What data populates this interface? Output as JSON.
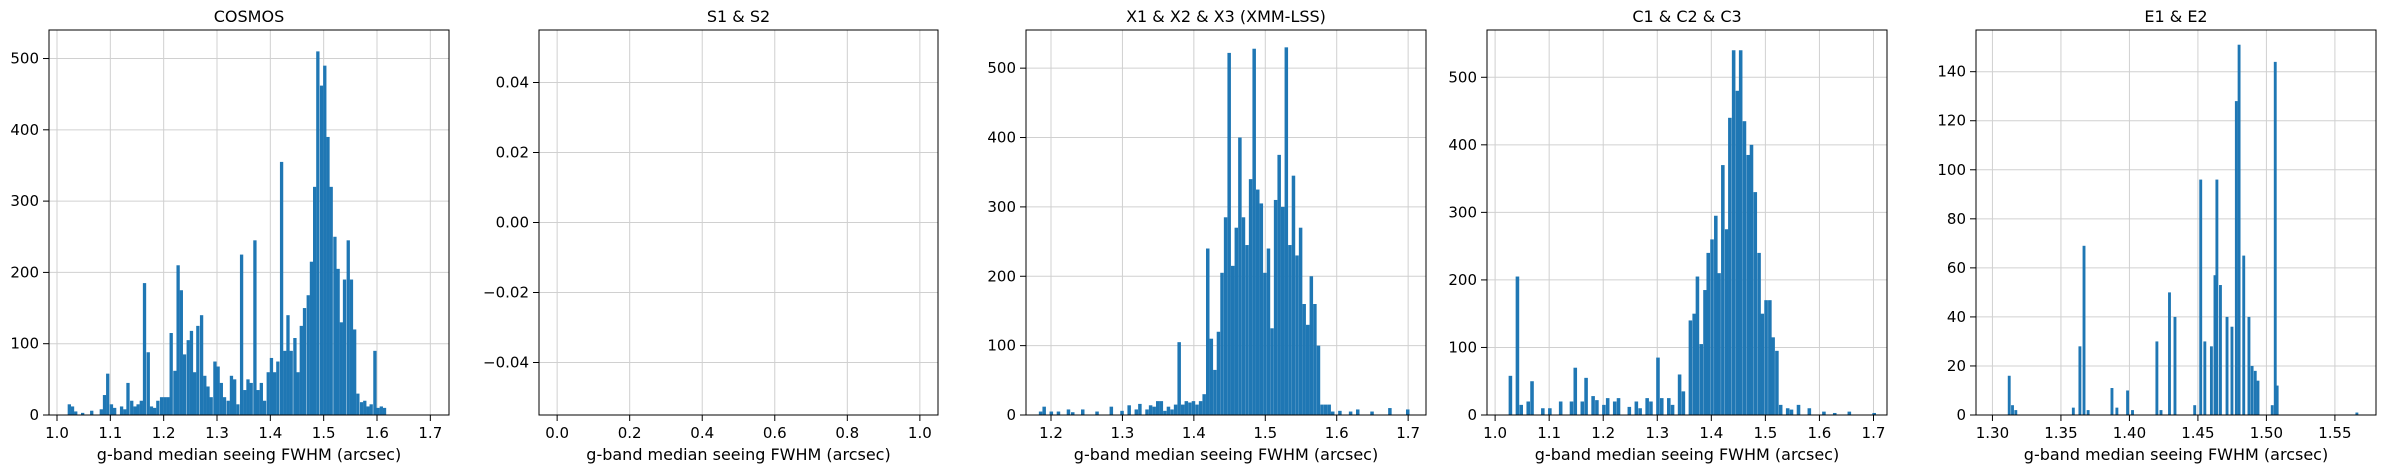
{
  "chart_data": [
    {
      "type": "bar",
      "title": "COSMOS",
      "xlabel": "g-band median seeing FWHM (arcsec)",
      "ylabel": "",
      "xlim": [
        0.985,
        1.735
      ],
      "ylim": [
        0,
        540
      ],
      "xticks": [
        1.0,
        1.1,
        1.2,
        1.3,
        1.4,
        1.5,
        1.6,
        1.7
      ],
      "xtick_labels": [
        "1.0",
        "1.1",
        "1.2",
        "1.3",
        "1.4",
        "1.5",
        "1.6",
        "1.7"
      ],
      "yticks": [
        0,
        100,
        200,
        300,
        400,
        500
      ],
      "ytick_labels": [
        "0",
        "100",
        "200",
        "300",
        "400",
        "500"
      ],
      "grid": true,
      "color": "#1f77b4",
      "bin_width": 0.0062,
      "bins": [
        [
          1.02,
          15
        ],
        [
          1.026,
          12
        ],
        [
          1.032,
          5
        ],
        [
          1.045,
          3
        ],
        [
          1.062,
          6
        ],
        [
          1.08,
          8
        ],
        [
          1.086,
          28
        ],
        [
          1.092,
          58
        ],
        [
          1.099,
          15
        ],
        [
          1.105,
          10
        ],
        [
          1.118,
          12
        ],
        [
          1.124,
          8
        ],
        [
          1.13,
          45
        ],
        [
          1.137,
          20
        ],
        [
          1.143,
          12
        ],
        [
          1.149,
          15
        ],
        [
          1.155,
          20
        ],
        [
          1.161,
          185
        ],
        [
          1.168,
          88
        ],
        [
          1.174,
          12
        ],
        [
          1.18,
          10
        ],
        [
          1.186,
          20
        ],
        [
          1.193,
          25
        ],
        [
          1.199,
          25
        ],
        [
          1.205,
          25
        ],
        [
          1.211,
          115
        ],
        [
          1.218,
          62
        ],
        [
          1.224,
          210
        ],
        [
          1.23,
          175
        ],
        [
          1.236,
          85
        ],
        [
          1.243,
          105
        ],
        [
          1.249,
          118
        ],
        [
          1.255,
          60
        ],
        [
          1.261,
          125
        ],
        [
          1.268,
          140
        ],
        [
          1.274,
          55
        ],
        [
          1.28,
          40
        ],
        [
          1.286,
          25
        ],
        [
          1.293,
          75
        ],
        [
          1.299,
          68
        ],
        [
          1.305,
          45
        ],
        [
          1.311,
          25
        ],
        [
          1.318,
          20
        ],
        [
          1.324,
          55
        ],
        [
          1.33,
          50
        ],
        [
          1.336,
          15
        ],
        [
          1.343,
          225
        ],
        [
          1.349,
          35
        ],
        [
          1.355,
          50
        ],
        [
          1.361,
          45
        ],
        [
          1.368,
          245
        ],
        [
          1.374,
          35
        ],
        [
          1.38,
          45
        ],
        [
          1.386,
          20
        ],
        [
          1.393,
          60
        ],
        [
          1.399,
          80
        ],
        [
          1.405,
          60
        ],
        [
          1.411,
          75
        ],
        [
          1.418,
          355
        ],
        [
          1.424,
          90
        ],
        [
          1.43,
          140
        ],
        [
          1.436,
          90
        ],
        [
          1.443,
          108
        ],
        [
          1.449,
          60
        ],
        [
          1.455,
          125
        ],
        [
          1.461,
          150
        ],
        [
          1.468,
          168
        ],
        [
          1.474,
          215
        ],
        [
          1.48,
          320
        ],
        [
          1.486,
          510
        ],
        [
          1.493,
          462
        ],
        [
          1.499,
          490
        ],
        [
          1.505,
          390
        ],
        [
          1.511,
          320
        ],
        [
          1.518,
          250
        ],
        [
          1.524,
          205
        ],
        [
          1.53,
          130
        ],
        [
          1.536,
          190
        ],
        [
          1.543,
          245
        ],
        [
          1.549,
          190
        ],
        [
          1.555,
          120
        ],
        [
          1.561,
          30
        ],
        [
          1.568,
          18
        ],
        [
          1.574,
          20
        ],
        [
          1.58,
          12
        ],
        [
          1.586,
          15
        ],
        [
          1.593,
          90
        ],
        [
          1.599,
          10
        ],
        [
          1.605,
          12
        ],
        [
          1.611,
          10
        ]
      ]
    },
    {
      "type": "bar",
      "title": "S1 & S2",
      "xlabel": "g-band median seeing FWHM (arcsec)",
      "ylabel": "",
      "xlim": [
        -0.05,
        1.05
      ],
      "ylim": [
        -0.055,
        0.055
      ],
      "xticks": [
        0.0,
        0.2,
        0.4,
        0.6,
        0.8,
        1.0
      ],
      "xtick_labels": [
        "0.0",
        "0.2",
        "0.4",
        "0.6",
        "0.8",
        "1.0"
      ],
      "yticks": [
        -0.04,
        -0.02,
        0.0,
        0.02,
        0.04
      ],
      "ytick_labels": [
        "−0.04",
        "−0.02",
        "0.00",
        "0.02",
        "0.04"
      ],
      "grid": true,
      "color": "#1f77b4",
      "bin_width": 0.01,
      "bins": []
    },
    {
      "type": "bar",
      "title": "X1 & X2 & X3 (XMM-LSS)",
      "xlabel": "g-band median seeing FWHM (arcsec)",
      "ylabel": "",
      "xlim": [
        1.165,
        1.725
      ],
      "ylim": [
        0,
        555
      ],
      "xticks": [
        1.2,
        1.3,
        1.4,
        1.5,
        1.6,
        1.7
      ],
      "xtick_labels": [
        "1.2",
        "1.3",
        "1.4",
        "1.5",
        "1.6",
        "1.7"
      ],
      "yticks": [
        0,
        100,
        200,
        300,
        400,
        500
      ],
      "ytick_labels": [
        "0",
        "100",
        "200",
        "300",
        "400",
        "500"
      ],
      "grid": true,
      "color": "#1f77b4",
      "bin_width": 0.0049,
      "bins": [
        [
          1.183,
          5
        ],
        [
          1.188,
          12
        ],
        [
          1.198,
          5
        ],
        [
          1.208,
          5
        ],
        [
          1.222,
          8
        ],
        [
          1.228,
          4
        ],
        [
          1.242,
          8
        ],
        [
          1.262,
          5
        ],
        [
          1.282,
          12
        ],
        [
          1.297,
          6
        ],
        [
          1.307,
          14
        ],
        [
          1.317,
          8
        ],
        [
          1.322,
          16
        ],
        [
          1.332,
          8
        ],
        [
          1.337,
          14
        ],
        [
          1.342,
          12
        ],
        [
          1.347,
          20
        ],
        [
          1.352,
          20
        ],
        [
          1.357,
          6
        ],
        [
          1.362,
          12
        ],
        [
          1.367,
          8
        ],
        [
          1.372,
          15
        ],
        [
          1.377,
          105
        ],
        [
          1.382,
          15
        ],
        [
          1.387,
          20
        ],
        [
          1.392,
          18
        ],
        [
          1.397,
          20
        ],
        [
          1.402,
          15
        ],
        [
          1.407,
          20
        ],
        [
          1.412,
          30
        ],
        [
          1.417,
          240
        ],
        [
          1.422,
          110
        ],
        [
          1.427,
          65
        ],
        [
          1.432,
          120
        ],
        [
          1.437,
          205
        ],
        [
          1.442,
          285
        ],
        [
          1.447,
          522
        ],
        [
          1.452,
          215
        ],
        [
          1.457,
          270
        ],
        [
          1.462,
          400
        ],
        [
          1.467,
          285
        ],
        [
          1.472,
          245
        ],
        [
          1.477,
          340
        ],
        [
          1.482,
          528
        ],
        [
          1.487,
          325
        ],
        [
          1.492,
          305
        ],
        [
          1.497,
          205
        ],
        [
          1.502,
          240
        ],
        [
          1.507,
          125
        ],
        [
          1.512,
          310
        ],
        [
          1.517,
          375
        ],
        [
          1.522,
          300
        ],
        [
          1.527,
          530
        ],
        [
          1.532,
          245
        ],
        [
          1.537,
          345
        ],
        [
          1.542,
          230
        ],
        [
          1.547,
          270
        ],
        [
          1.552,
          160
        ],
        [
          1.557,
          130
        ],
        [
          1.562,
          200
        ],
        [
          1.567,
          160
        ],
        [
          1.572,
          100
        ],
        [
          1.577,
          15
        ],
        [
          1.582,
          15
        ],
        [
          1.587,
          15
        ],
        [
          1.592,
          5
        ],
        [
          1.602,
          6
        ],
        [
          1.617,
          5
        ],
        [
          1.627,
          8
        ],
        [
          1.647,
          5
        ],
        [
          1.672,
          10
        ],
        [
          1.697,
          8
        ]
      ]
    },
    {
      "type": "bar",
      "title": "C1 & C2 & C3",
      "xlabel": "g-band median seeing FWHM (arcsec)",
      "ylabel": "",
      "xlim": [
        0.985,
        1.725
      ],
      "ylim": [
        0,
        570
      ],
      "xticks": [
        1.0,
        1.1,
        1.2,
        1.3,
        1.4,
        1.5,
        1.6,
        1.7
      ],
      "xtick_labels": [
        "1.0",
        "1.1",
        "1.2",
        "1.3",
        "1.4",
        "1.5",
        "1.6",
        "1.7"
      ],
      "yticks": [
        0,
        100,
        200,
        300,
        400,
        500
      ],
      "ytick_labels": [
        "0",
        "100",
        "200",
        "300",
        "400",
        "500"
      ],
      "grid": true,
      "color": "#1f77b4",
      "bin_width": 0.0066,
      "bins": [
        [
          1.025,
          58
        ],
        [
          1.038,
          205
        ],
        [
          1.045,
          15
        ],
        [
          1.058,
          20
        ],
        [
          1.065,
          50
        ],
        [
          1.085,
          10
        ],
        [
          1.098,
          10
        ],
        [
          1.118,
          20
        ],
        [
          1.138,
          20
        ],
        [
          1.145,
          70
        ],
        [
          1.158,
          20
        ],
        [
          1.165,
          55
        ],
        [
          1.178,
          28
        ],
        [
          1.185,
          22
        ],
        [
          1.198,
          15
        ],
        [
          1.205,
          25
        ],
        [
          1.218,
          20
        ],
        [
          1.225,
          25
        ],
        [
          1.245,
          12
        ],
        [
          1.258,
          20
        ],
        [
          1.265,
          10
        ],
        [
          1.278,
          25
        ],
        [
          1.285,
          20
        ],
        [
          1.298,
          85
        ],
        [
          1.305,
          25
        ],
        [
          1.318,
          25
        ],
        [
          1.325,
          15
        ],
        [
          1.338,
          60
        ],
        [
          1.345,
          35
        ],
        [
          1.358,
          140
        ],
        [
          1.365,
          150
        ],
        [
          1.371,
          205
        ],
        [
          1.378,
          105
        ],
        [
          1.385,
          185
        ],
        [
          1.391,
          240
        ],
        [
          1.398,
          260
        ],
        [
          1.405,
          295
        ],
        [
          1.411,
          210
        ],
        [
          1.418,
          370
        ],
        [
          1.425,
          275
        ],
        [
          1.431,
          440
        ],
        [
          1.438,
          540
        ],
        [
          1.445,
          480
        ],
        [
          1.451,
          540
        ],
        [
          1.458,
          435
        ],
        [
          1.465,
          385
        ],
        [
          1.471,
          400
        ],
        [
          1.478,
          330
        ],
        [
          1.485,
          240
        ],
        [
          1.491,
          150
        ],
        [
          1.498,
          170
        ],
        [
          1.505,
          170
        ],
        [
          1.511,
          115
        ],
        [
          1.518,
          95
        ],
        [
          1.525,
          15
        ],
        [
          1.538,
          10
        ],
        [
          1.545,
          8
        ],
        [
          1.558,
          15
        ],
        [
          1.578,
          10
        ],
        [
          1.605,
          5
        ],
        [
          1.625,
          3
        ],
        [
          1.652,
          5
        ],
        [
          1.698,
          3
        ]
      ]
    },
    {
      "type": "bar",
      "title": "E1 & E2",
      "xlabel": "g-band median seeing FWHM (arcsec)",
      "ylabel": "",
      "xlim": [
        1.288,
        1.58
      ],
      "ylim": [
        0,
        157
      ],
      "xticks": [
        1.3,
        1.35,
        1.4,
        1.45,
        1.5,
        1.55
      ],
      "xtick_labels": [
        "1.30",
        "1.35",
        "1.40",
        "1.45",
        "1.50",
        "1.55"
      ],
      "yticks": [
        0,
        20,
        40,
        60,
        80,
        100,
        120,
        140
      ],
      "ytick_labels": [
        "0",
        "20",
        "40",
        "60",
        "80",
        "100",
        "120",
        "140"
      ],
      "grid": true,
      "color": "#1f77b4",
      "bin_width": 0.0021,
      "bins": [
        [
          1.3112,
          16
        ],
        [
          1.3136,
          4
        ],
        [
          1.316,
          2
        ],
        [
          1.358,
          3
        ],
        [
          1.3628,
          28
        ],
        [
          1.3658,
          69
        ],
        [
          1.3688,
          2
        ],
        [
          1.3862,
          11
        ],
        [
          1.3898,
          3
        ],
        [
          1.3976,
          10
        ],
        [
          1.4012,
          2
        ],
        [
          1.419,
          30
        ],
        [
          1.422,
          2
        ],
        [
          1.4282,
          50
        ],
        [
          1.4322,
          40
        ],
        [
          1.4466,
          4
        ],
        [
          1.451,
          96
        ],
        [
          1.454,
          30
        ],
        [
          1.4588,
          28
        ],
        [
          1.4614,
          57
        ],
        [
          1.4628,
          96
        ],
        [
          1.4654,
          53
        ],
        [
          1.4702,
          40
        ],
        [
          1.4738,
          36
        ],
        [
          1.477,
          128
        ],
        [
          1.479,
          151
        ],
        [
          1.4824,
          65
        ],
        [
          1.4862,
          40
        ],
        [
          1.4885,
          20
        ],
        [
          1.4908,
          18
        ],
        [
          1.4928,
          14
        ],
        [
          1.5032,
          4
        ],
        [
          1.5054,
          144
        ],
        [
          1.5068,
          12
        ],
        [
          1.565,
          1
        ]
      ]
    }
  ]
}
